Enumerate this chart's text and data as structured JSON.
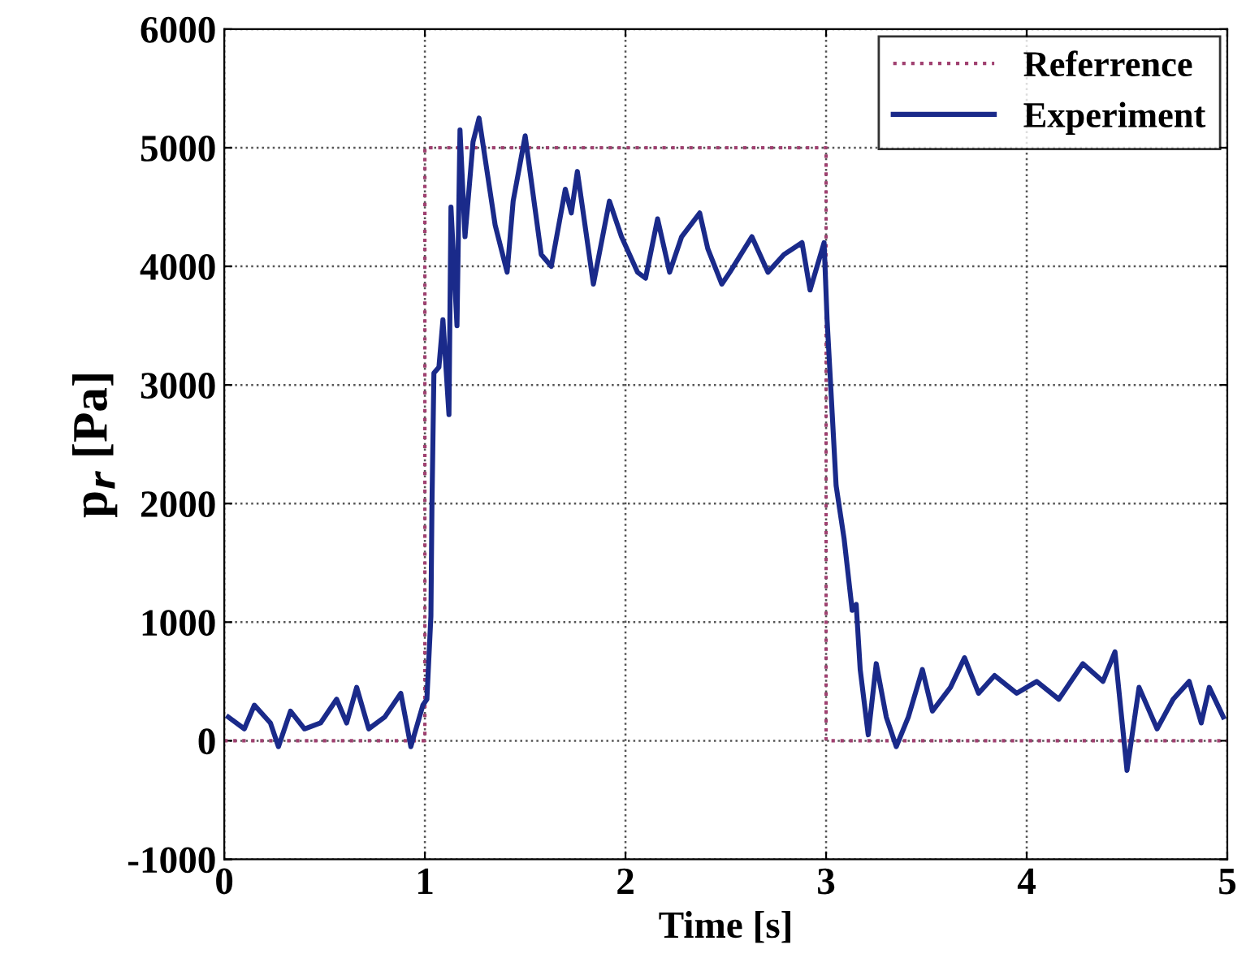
{
  "chart_data": {
    "type": "line",
    "xlabel": "Time [s]",
    "ylabel": "p$_{r}$ [Pa]",
    "xlim": [
      0,
      5
    ],
    "ylim": [
      -1000,
      6000
    ],
    "xticks": [
      0,
      1,
      2,
      3,
      4,
      5
    ],
    "yticks": [
      -1000,
      0,
      1000,
      2000,
      3000,
      4000,
      5000,
      6000
    ],
    "grid": true,
    "legend": "top right",
    "series": [
      {
        "name": "Referrence",
        "color": "#a04070",
        "line_style": "dotted",
        "x": [
          0,
          1,
          1,
          3,
          3,
          5
        ],
        "values": [
          0,
          0,
          5000,
          5000,
          0,
          0
        ]
      },
      {
        "name": "Experiment",
        "color": "#1a2a8a",
        "line_style": "solid",
        "x": [
          0.02,
          0.1,
          0.15,
          0.23,
          0.27,
          0.33,
          0.4,
          0.48,
          0.56,
          0.61,
          0.66,
          0.72,
          0.8,
          0.88,
          0.93,
          0.99,
          1.01,
          1.03,
          1.035,
          1.045,
          1.07,
          1.09,
          1.12,
          1.13,
          1.16,
          1.175,
          1.2,
          1.24,
          1.27,
          1.35,
          1.41,
          1.44,
          1.5,
          1.58,
          1.63,
          1.7,
          1.73,
          1.76,
          1.84,
          1.92,
          1.98,
          2.06,
          2.1,
          2.16,
          2.22,
          2.28,
          2.37,
          2.41,
          2.48,
          2.52,
          2.63,
          2.71,
          2.79,
          2.88,
          2.92,
          2.99,
          3.005,
          3.05,
          3.09,
          3.13,
          3.15,
          3.17,
          3.21,
          3.25,
          3.3,
          3.35,
          3.41,
          3.48,
          3.53,
          3.62,
          3.69,
          3.76,
          3.84,
          3.95,
          4.05,
          4.16,
          4.28,
          4.38,
          4.44,
          4.5,
          4.56,
          4.65,
          4.73,
          4.81,
          4.87,
          4.91,
          4.98
        ],
        "values": [
          200,
          100,
          300,
          150,
          -50,
          250,
          100,
          150,
          350,
          150,
          450,
          100,
          200,
          400,
          -50,
          300,
          350,
          1050,
          1950,
          3100,
          3150,
          3550,
          2750,
          4500,
          3500,
          5150,
          4250,
          5050,
          5250,
          4350,
          3950,
          4550,
          5100,
          4100,
          4000,
          4650,
          4450,
          4800,
          3850,
          4550,
          4250,
          3950,
          3900,
          4400,
          3950,
          4250,
          4450,
          4150,
          3850,
          3950,
          4250,
          3950,
          4100,
          4200,
          3800,
          4200,
          3550,
          2150,
          1700,
          1100,
          1150,
          600,
          50,
          650,
          200,
          -50,
          200,
          600,
          250,
          450,
          700,
          400,
          550,
          400,
          500,
          350,
          650,
          500,
          750,
          -250,
          450,
          100,
          350,
          500,
          150,
          450,
          200
        ]
      }
    ]
  }
}
